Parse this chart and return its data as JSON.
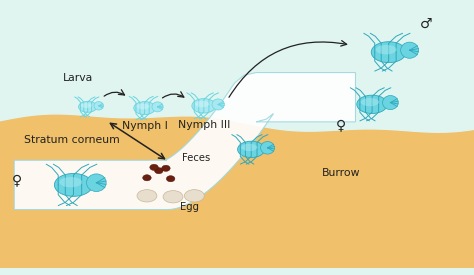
{
  "bg_sky": "#e0f5f0",
  "bg_skin": "#f0c06a",
  "burrow_fill": "#cce8ee",
  "burrow_edge": "#a0d8e0",
  "mite_fill": "#6ad4e0",
  "mite_light": "#a8e8f0",
  "mite_dark": "#30a8bc",
  "egg_fill": "#e8dece",
  "egg_edge": "#c8b898",
  "feces_fill": "#6a2010",
  "feces_edge": "#4a1008",
  "arrow_color": "#222222",
  "text_color": "#222222",
  "label_larva": "Larva",
  "label_nymph1": "Nymph I",
  "label_nymph3": "Nymph III",
  "label_stratum": "Stratum corneum",
  "label_burrow": "Burrow",
  "label_feces": "Feces",
  "label_egg": "Egg",
  "male_symbol": "♂",
  "female_symbol": "♀",
  "figsize": [
    4.74,
    2.75
  ],
  "dpi": 100
}
